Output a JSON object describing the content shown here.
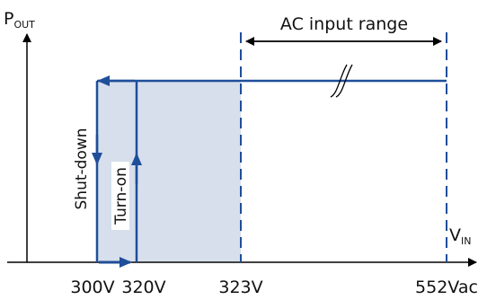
{
  "axes": {
    "y_label": "P",
    "y_label_sub": "OUT",
    "x_label": "V",
    "x_label_sub": "IN"
  },
  "range_label": "AC input range",
  "labels": {
    "shutdown": "Shut-down",
    "turnon": "Turn-on"
  },
  "ticks": [
    "300V",
    "320V",
    "323V",
    "552Vac"
  ],
  "colors": {
    "line": "#1f4e9a",
    "fill": "#d6dfeb",
    "axis": "#000000",
    "text": "#111111"
  },
  "icons": {
    "break": "double-slash-break-icon"
  }
}
